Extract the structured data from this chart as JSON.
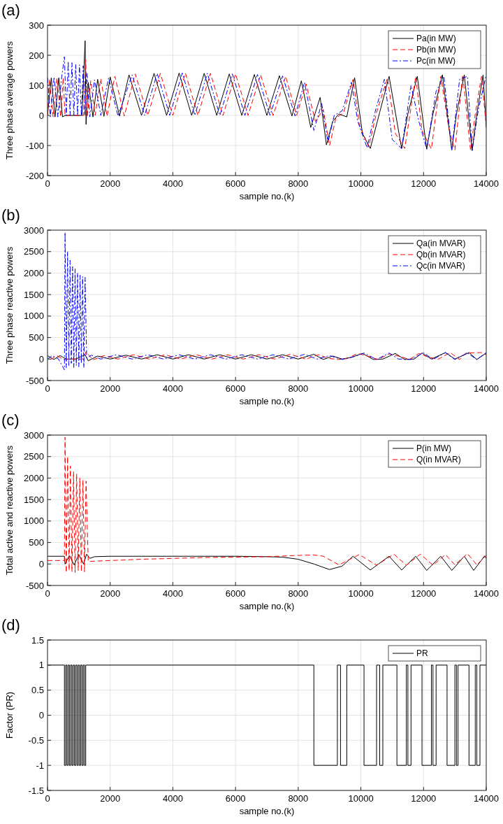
{
  "chart_data": [
    {
      "type": "line",
      "title": "(a)",
      "xlabel": "sample no.(k)",
      "ylabel": "Three phase average powers",
      "xlim": [
        0,
        14000
      ],
      "xticks": [
        0,
        2000,
        4000,
        6000,
        8000,
        10000,
        12000,
        14000
      ],
      "ylim": [
        -200,
        300
      ],
      "yticks": [
        -200,
        -100,
        0,
        100,
        200,
        300
      ],
      "grid": true,
      "legend": "top right",
      "series": [
        {
          "name": "Pa(in MW)",
          "color": "#000000",
          "line_style": "solid",
          "x": [
            0,
            120,
            240,
            360,
            480,
            560,
            800,
            1100,
            1200,
            1230,
            1300,
            1450,
            1600,
            1800,
            2000,
            2300,
            2600,
            3000,
            3400,
            3800,
            4200,
            4600,
            5000,
            5400,
            5800,
            6200,
            6600,
            7000,
            7400,
            7800,
            8100,
            8400,
            8700,
            8900,
            9100,
            9300,
            9550,
            9800,
            10050,
            10300,
            10600,
            10900,
            11300,
            11500,
            11800,
            12100,
            12300,
            12600,
            12900,
            13050,
            13300,
            13550,
            13700,
            13900,
            14000
          ],
          "values": [
            0,
            125,
            -5,
            125,
            -5,
            0,
            0,
            0,
            248,
            -30,
            110,
            -5,
            120,
            -3,
            128,
            -2,
            135,
            0,
            140,
            0,
            141,
            0,
            140,
            0,
            138,
            0,
            136,
            0,
            132,
            -2,
            115,
            -40,
            60,
            -98,
            -20,
            5,
            -5,
            125,
            -60,
            -110,
            10,
            130,
            -110,
            5,
            130,
            -112,
            5,
            135,
            -115,
            5,
            135,
            -117,
            5,
            135,
            -40
          ]
        },
        {
          "name": "Pb(in MW)",
          "color": "#ff0000",
          "line_style": "dashed",
          "x": [
            0,
            60,
            180,
            300,
            420,
            500,
            560,
            900,
            1150,
            1220,
            1270,
            1380,
            1520,
            1700,
            1900,
            2150,
            2450,
            2800,
            3200,
            3600,
            4000,
            4400,
            4800,
            5200,
            5600,
            6000,
            6400,
            6800,
            7200,
            7600,
            7950,
            8250,
            8550,
            8800,
            9000,
            9200,
            9450,
            9750,
            9950,
            10250,
            10500,
            10850,
            11100,
            11400,
            11750,
            11950,
            12250,
            12550,
            12800,
            13000,
            13250,
            13500,
            13650,
            13850,
            14000
          ],
          "values": [
            0,
            120,
            -5,
            125,
            -5,
            125,
            0,
            0,
            0,
            185,
            -5,
            115,
            0,
            122,
            -3,
            130,
            -2,
            138,
            0,
            140,
            0,
            141,
            0,
            140,
            0,
            138,
            0,
            135,
            0,
            130,
            0,
            105,
            -20,
            20,
            -100,
            -10,
            10,
            120,
            -30,
            -105,
            10,
            125,
            -60,
            -110,
            130,
            -50,
            -112,
            130,
            -40,
            -115,
            135,
            -117,
            5,
            130,
            -35
          ]
        },
        {
          "name": "Pc(in MW)",
          "color": "#0000ff",
          "line_style": "dashdot",
          "x": [
            0,
            90,
            210,
            330,
            450,
            540,
            600,
            660,
            720,
            780,
            840,
            900,
            960,
            1020,
            1080,
            1140,
            1190,
            1260,
            1350,
            1500,
            1700,
            1950,
            2250,
            2700,
            3100,
            3500,
            3900,
            4300,
            4700,
            5100,
            5500,
            5900,
            6300,
            6700,
            7100,
            7500,
            7900,
            8200,
            8500,
            8750,
            8950,
            9150,
            9400,
            9700,
            9900,
            10200,
            10450,
            10750,
            11000,
            11300,
            11600,
            11850,
            12100,
            12400,
            12650,
            12900,
            13150,
            13400,
            13550,
            13750,
            14000
          ],
          "values": [
            125,
            -5,
            128,
            -5,
            125,
            195,
            0,
            180,
            0,
            175,
            0,
            170,
            0,
            168,
            0,
            165,
            0,
            140,
            -5,
            118,
            0,
            125,
            -2,
            135,
            0,
            140,
            0,
            141,
            0,
            140,
            0,
            138,
            0,
            136,
            0,
            131,
            -2,
            110,
            -50,
            40,
            -90,
            0,
            15,
            110,
            -20,
            -108,
            10,
            120,
            -80,
            -110,
            100,
            -20,
            -112,
            80,
            130,
            -115,
            120,
            130,
            -117,
            20,
            135
          ]
        }
      ]
    },
    {
      "type": "line",
      "title": "(b)",
      "xlabel": "sample no.(k)",
      "ylabel": "Three phase reactive powers",
      "xlim": [
        0,
        14000
      ],
      "xticks": [
        0,
        2000,
        4000,
        6000,
        8000,
        10000,
        12000,
        14000
      ],
      "ylim": [
        -500,
        3000
      ],
      "yticks": [
        -500,
        0,
        500,
        1000,
        1500,
        2000,
        2500,
        3000
      ],
      "grid": true,
      "legend": "top right",
      "series": [
        {
          "name": "Qa(in MVAR)",
          "color": "#000000",
          "line_style": "solid",
          "x": [
            0,
            200,
            400,
            600,
            900,
            1200,
            1300,
            1600,
            2000,
            2500,
            3000,
            3500,
            4000,
            4500,
            5000,
            5500,
            6000,
            6500,
            7000,
            7500,
            8000,
            8500,
            8800,
            9100,
            9400,
            9700,
            10050,
            10400,
            10700,
            11100,
            11400,
            11700,
            11950,
            12250,
            12700,
            13000,
            13450,
            13700,
            14000
          ],
          "values": [
            80,
            -10,
            80,
            0,
            0,
            100,
            -40,
            70,
            0,
            90,
            0,
            100,
            0,
            100,
            0,
            100,
            0,
            100,
            0,
            100,
            0,
            110,
            -10,
            70,
            0,
            40,
            130,
            -10,
            0,
            130,
            -10,
            0,
            140,
            0,
            150,
            0,
            150,
            -10,
            140
          ]
        },
        {
          "name": "Qb(in MVAR)",
          "color": "#ff0000",
          "line_style": "dashed",
          "x": [
            100,
            300,
            500,
            800,
            1150,
            1230,
            1450,
            1800,
            2250,
            2750,
            3250,
            3750,
            4250,
            4750,
            5250,
            5750,
            6250,
            6750,
            7250,
            7750,
            8250,
            8650,
            8950,
            9250,
            9550,
            9900,
            10200,
            10550,
            10900,
            11250,
            11550,
            11850,
            12100,
            12450,
            12850,
            13150,
            13350,
            13850,
            14000
          ],
          "values": [
            -10,
            80,
            -10,
            0,
            0,
            170,
            -20,
            80,
            0,
            100,
            0,
            100,
            0,
            100,
            0,
            100,
            0,
            100,
            0,
            110,
            0,
            100,
            20,
            -10,
            10,
            130,
            70,
            -10,
            120,
            60,
            -10,
            130,
            60,
            -10,
            150,
            -10,
            140,
            150,
            100
          ]
        },
        {
          "name": "Qc(in MVAR)",
          "color": "#0000ff",
          "line_style": "dashdot",
          "x": [
            0,
            150,
            350,
            540,
            560,
            600,
            640,
            680,
            720,
            760,
            800,
            840,
            880,
            920,
            960,
            1000,
            1040,
            1080,
            1120,
            1160,
            1200,
            1250,
            1400,
            1700,
            2200,
            2700,
            3200,
            3700,
            4200,
            4700,
            5200,
            5700,
            6200,
            6700,
            7200,
            7700,
            8200,
            8600,
            9000,
            9400,
            9800,
            10100,
            10500,
            10900,
            11200,
            11600,
            12000,
            12300,
            12700,
            13000,
            13400,
            13700,
            14000
          ],
          "values": [
            0,
            80,
            0,
            -250,
            2950,
            -200,
            2500,
            -150,
            2300,
            -100,
            2150,
            -200,
            2100,
            -150,
            2000,
            -180,
            1950,
            -100,
            1920,
            -200,
            1900,
            20,
            90,
            0,
            100,
            0,
            100,
            0,
            100,
            0,
            100,
            0,
            100,
            0,
            100,
            0,
            110,
            0,
            80,
            -10,
            60,
            140,
            -10,
            140,
            0,
            -10,
            150,
            -10,
            150,
            -10,
            140,
            -10,
            150
          ]
        }
      ]
    },
    {
      "type": "line",
      "title": "(c)",
      "xlabel": "sample no.(k)",
      "ylabel": "Total active and reactive powers",
      "xlim": [
        0,
        14000
      ],
      "xticks": [
        0,
        2000,
        4000,
        6000,
        8000,
        10000,
        12000,
        14000
      ],
      "ylim": [
        -500,
        3000
      ],
      "yticks": [
        -500,
        0,
        500,
        1000,
        1500,
        2000,
        2500,
        3000
      ],
      "grid": true,
      "legend": "top right",
      "series": [
        {
          "name": "P(in MW)",
          "color": "#000000",
          "line_style": "solid",
          "x": [
            0,
            540,
            560,
            700,
            850,
            1000,
            1150,
            1250,
            1350,
            1500,
            2000,
            3000,
            4000,
            5000,
            6000,
            7000,
            7500,
            8000,
            8500,
            9000,
            9400,
            9750,
            10300,
            10900,
            11300,
            11750,
            12100,
            12550,
            12900,
            13300,
            13600,
            13950,
            14000
          ],
          "values": [
            180,
            180,
            0,
            200,
            -20,
            220,
            0,
            230,
            130,
            170,
            180,
            180,
            180,
            180,
            180,
            170,
            160,
            110,
            0,
            -130,
            -50,
            180,
            -140,
            180,
            -140,
            180,
            -150,
            180,
            -150,
            180,
            -150,
            190,
            130
          ]
        },
        {
          "name": "Q(in MVAR)",
          "color": "#ff0000",
          "line_style": "dashed",
          "x": [
            0,
            540,
            560,
            600,
            640,
            690,
            730,
            780,
            830,
            880,
            930,
            980,
            1030,
            1080,
            1130,
            1180,
            1230,
            1300,
            2000,
            3000,
            4000,
            5000,
            6000,
            7000,
            8000,
            8500,
            8800,
            9300,
            9950,
            10500,
            11050,
            11450,
            11900,
            12300,
            12700,
            13000,
            13400,
            13700,
            14000
          ],
          "values": [
            80,
            80,
            2950,
            -200,
            2500,
            -150,
            2280,
            -180,
            2150,
            -200,
            2100,
            -150,
            2000,
            -180,
            1950,
            -180,
            1930,
            60,
            80,
            110,
            130,
            150,
            160,
            170,
            200,
            210,
            180,
            -20,
            220,
            -30,
            230,
            -30,
            230,
            -30,
            220,
            -20,
            240,
            -20,
            200
          ]
        }
      ]
    },
    {
      "type": "step",
      "title": "(d)",
      "xlabel": "sample no.(k)",
      "ylabel": "Factor (PR)",
      "xlim": [
        0,
        14000
      ],
      "xticks": [
        0,
        2000,
        4000,
        6000,
        8000,
        10000,
        12000,
        14000
      ],
      "ylim": [
        -1.5,
        1.5
      ],
      "yticks": [
        -1.5,
        -1,
        -0.5,
        0,
        0.5,
        1,
        1.5
      ],
      "grid": true,
      "legend": "top right",
      "series": [
        {
          "name": "PR",
          "color": "#000000",
          "line_style": "solid",
          "x": [
            0,
            540,
            580,
            620,
            660,
            700,
            740,
            780,
            820,
            860,
            900,
            940,
            980,
            1020,
            1060,
            1100,
            1140,
            1180,
            1220,
            8500,
            9250,
            9350,
            9550,
            10100,
            10500,
            10600,
            10700,
            11150,
            11450,
            11500,
            11600,
            11950,
            12250,
            12300,
            12400,
            12750,
            13000,
            13050,
            13100,
            13450,
            13650,
            13700,
            13800,
            14000
          ],
          "values": [
            1,
            -1,
            1,
            -1,
            1,
            -1,
            1,
            -1,
            1,
            -1,
            1,
            -1,
            1,
            -1,
            1,
            -1,
            1,
            -1,
            1,
            -1,
            1,
            -1,
            1,
            -1,
            1,
            -1,
            1,
            -1,
            1,
            -1,
            1,
            -1,
            1,
            -1,
            1,
            -1,
            1,
            -1,
            1,
            -1,
            1,
            -1,
            1,
            1
          ]
        }
      ]
    }
  ]
}
